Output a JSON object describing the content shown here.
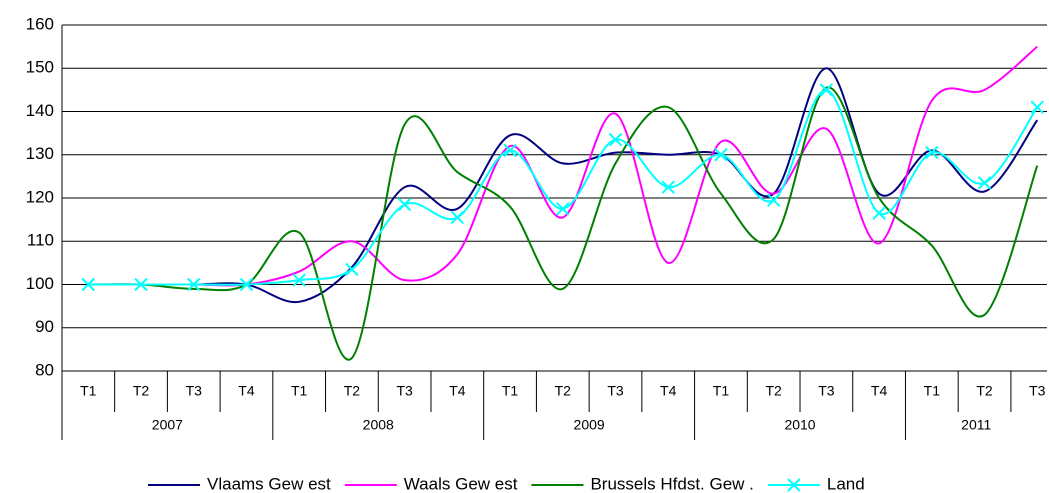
{
  "chart_data": {
    "type": "line",
    "categories": [
      "T1",
      "T2",
      "T3",
      "T4",
      "T1",
      "T2",
      "T3",
      "T4",
      "T1",
      "T2",
      "T3",
      "T4",
      "T1",
      "T2",
      "T3",
      "T4",
      "T1",
      "T2",
      "T3"
    ],
    "category_groups": [
      "2007",
      "2008",
      "2009",
      "2010",
      "2011"
    ],
    "series": [
      {
        "name": "Vlaams Gew est",
        "color": "#000080",
        "values": [
          100,
          100,
          100,
          100,
          96,
          104,
          122.5,
          117.5,
          134.5,
          128,
          130.5,
          130,
          130,
          121,
          150,
          121,
          131,
          121.5,
          138
        ]
      },
      {
        "name": "Waals Gew est",
        "color": "#ff00ff",
        "values": [
          100,
          100,
          100,
          100,
          103,
          110,
          101,
          107,
          132,
          115.5,
          139.5,
          105,
          133,
          121,
          136,
          109.5,
          142.5,
          145,
          155
        ]
      },
      {
        "name": "Brussels Hfdst. Gew .",
        "color": "#008000",
        "values": [
          100,
          100,
          99,
          100,
          112,
          83,
          137,
          126,
          118,
          99,
          128,
          141,
          121,
          110.5,
          145.5,
          120,
          109,
          93,
          127.5
        ]
      },
      {
        "name": "Land",
        "color": "#00ffff",
        "marker": "x",
        "values": [
          100,
          100,
          100,
          100,
          101,
          103.5,
          118.5,
          115.5,
          131,
          117.5,
          133.5,
          122.5,
          130,
          119.5,
          145,
          116.5,
          130.5,
          123.5,
          141
        ]
      }
    ],
    "ylim": [
      80,
      160
    ],
    "yticks": [
      80,
      90,
      100,
      110,
      120,
      130,
      140,
      150,
      160
    ],
    "grid": true,
    "legend": "bottom"
  }
}
